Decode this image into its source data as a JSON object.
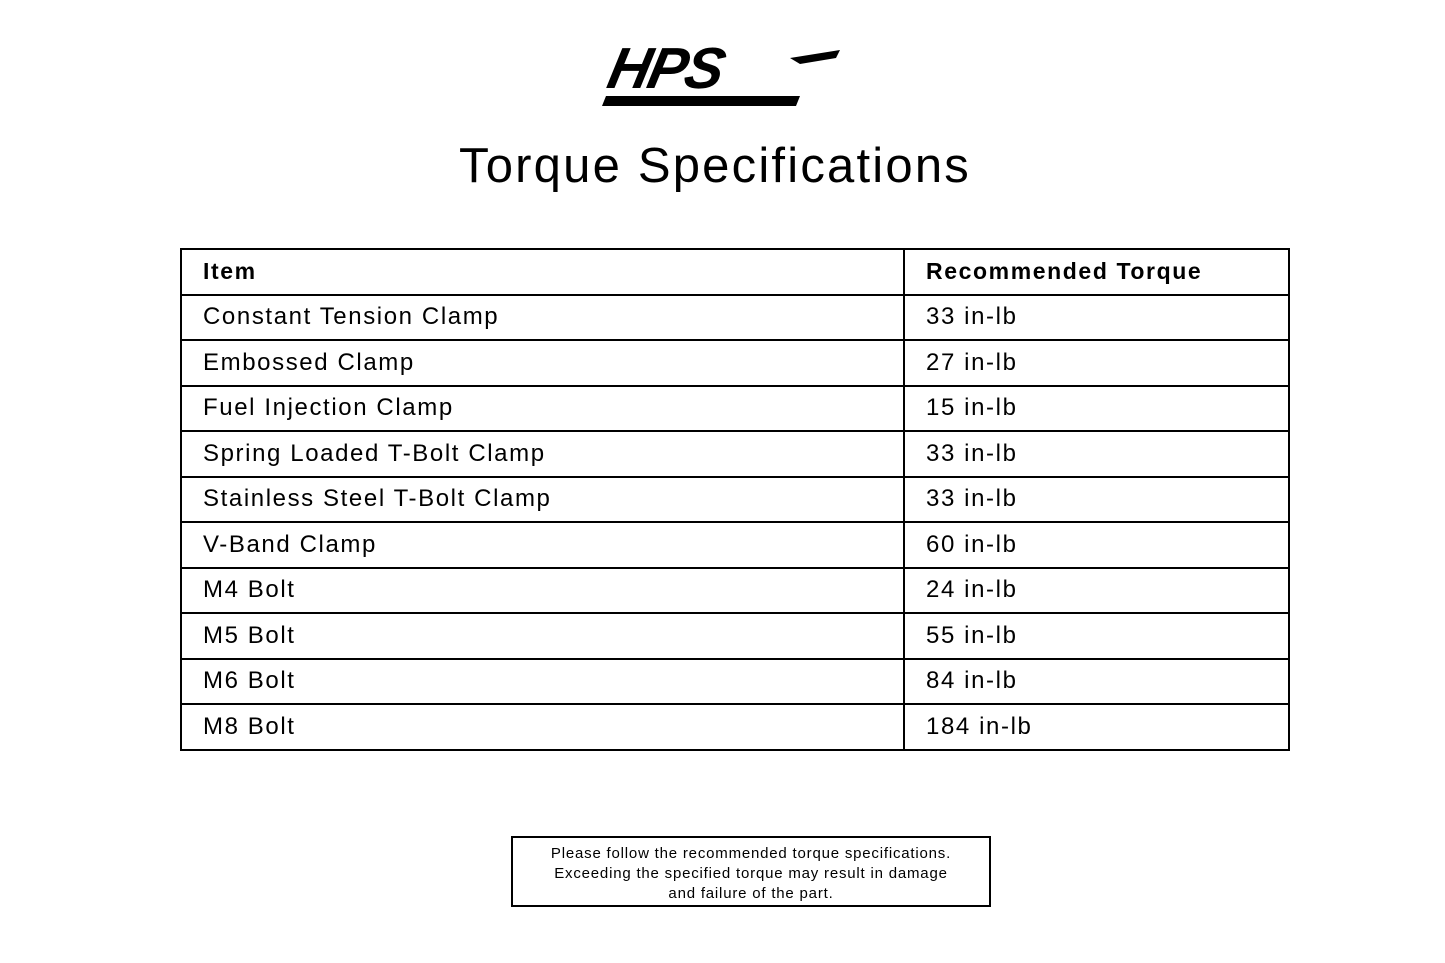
{
  "logo": {
    "text": "HPS"
  },
  "title": "Torque Specifications",
  "table": {
    "headers": [
      "Item",
      "Recommended Torque"
    ],
    "rows": [
      {
        "item": "Constant Tension Clamp",
        "torque": "33 in-lb"
      },
      {
        "item": "Embossed Clamp",
        "torque": "27 in-lb"
      },
      {
        "item": "Fuel Injection Clamp",
        "torque": "15 in-lb"
      },
      {
        "item": "Spring Loaded T-Bolt Clamp",
        "torque": "33 in-lb"
      },
      {
        "item": "Stainless Steel T-Bolt Clamp",
        "torque": "33 in-lb"
      },
      {
        "item": "V-Band Clamp",
        "torque": "60 in-lb"
      },
      {
        "item": "M4 Bolt",
        "torque": "24 in-lb"
      },
      {
        "item": "M5 Bolt",
        "torque": "55 in-lb"
      },
      {
        "item": "M6 Bolt",
        "torque": "84 in-lb"
      },
      {
        "item": "M8 Bolt",
        "torque": "184 in-lb"
      }
    ]
  },
  "note": {
    "lines": [
      "Please follow the recommended torque specifications.",
      "Exceeding the specified torque may result in damage",
      "and failure of the part."
    ]
  }
}
